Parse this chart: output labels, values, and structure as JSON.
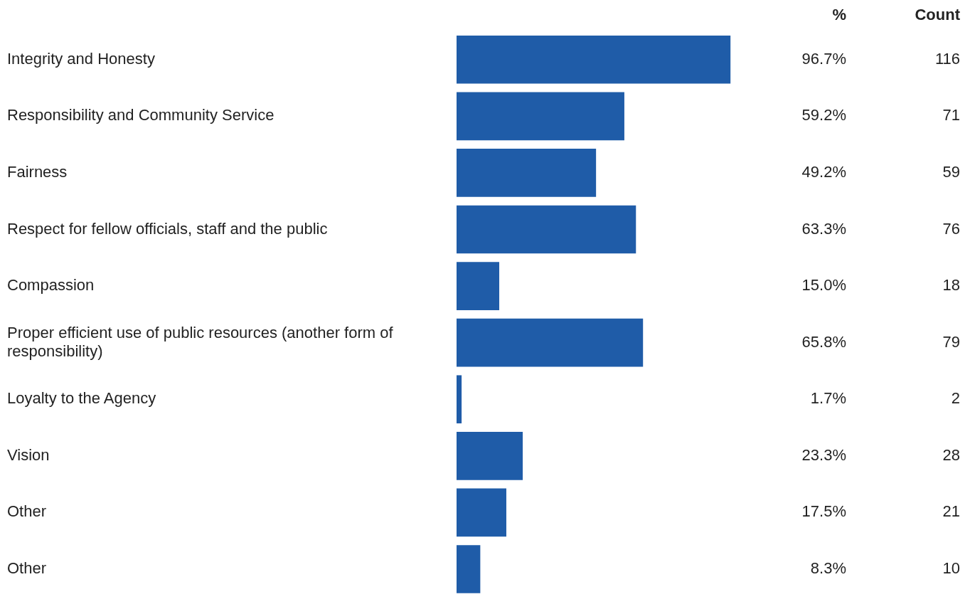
{
  "chart_data": {
    "type": "bar",
    "orientation": "horizontal",
    "categories": [
      "Integrity and Honesty",
      "Responsibility and Community Service",
      "Fairness",
      "Respect for fellow officials, staff and the public",
      "Compassion",
      "Proper efficient use of public resources (another form of responsibility)",
      "Loyalty to the Agency",
      "Vision",
      "Other",
      "Other"
    ],
    "values": [
      96.7,
      59.2,
      49.2,
      63.3,
      15.0,
      65.8,
      1.7,
      23.3,
      17.5,
      8.3
    ],
    "value_labels": [
      "96.7%",
      "59.2%",
      "49.2%",
      "63.3%",
      "15.0%",
      "65.8%",
      "1.7%",
      "23.3%",
      "17.5%",
      "8.3%"
    ],
    "color": "#1f5ca8",
    "annotations": [
      "%",
      "Count",
      "116",
      "71",
      "59",
      "76",
      "18",
      "79",
      "2",
      "28",
      "21",
      "10"
    ],
    "grid": false,
    "legend": false
  }
}
